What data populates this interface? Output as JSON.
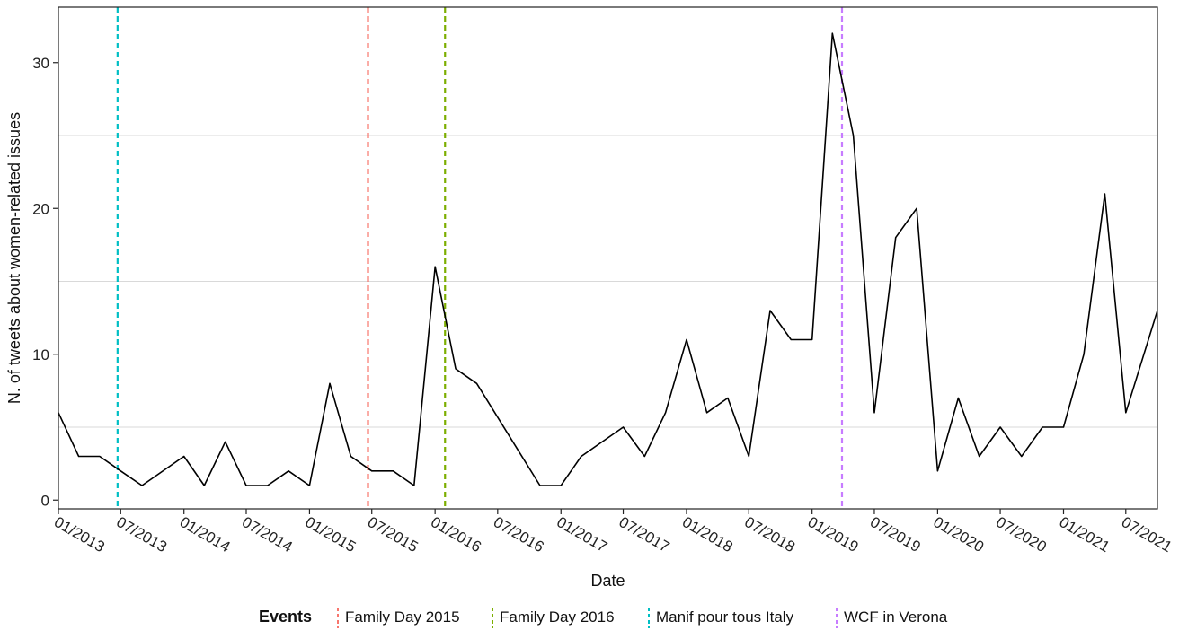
{
  "chart_data": {
    "type": "line",
    "title": "",
    "xlabel": "Date",
    "ylabel": "N. of tweets about women-related issues",
    "xlim": [
      "2013-01-01",
      "2021-10-01"
    ],
    "ylim": [
      -0.6,
      33.8
    ],
    "y_ticks": [
      0,
      10,
      20,
      30
    ],
    "y_minor_grid": [
      5,
      15,
      25
    ],
    "x_ticks": [
      {
        "date": "2013-01-01",
        "label": "01/2013"
      },
      {
        "date": "2013-07-01",
        "label": "07/2013"
      },
      {
        "date": "2014-01-01",
        "label": "01/2014"
      },
      {
        "date": "2014-07-01",
        "label": "07/2014"
      },
      {
        "date": "2015-01-01",
        "label": "01/2015"
      },
      {
        "date": "2015-07-01",
        "label": "07/2015"
      },
      {
        "date": "2016-01-01",
        "label": "01/2016"
      },
      {
        "date": "2016-07-01",
        "label": "07/2016"
      },
      {
        "date": "2017-01-01",
        "label": "01/2017"
      },
      {
        "date": "2017-07-01",
        "label": "07/2017"
      },
      {
        "date": "2018-01-01",
        "label": "01/2018"
      },
      {
        "date": "2018-07-01",
        "label": "07/2018"
      },
      {
        "date": "2019-01-01",
        "label": "01/2019"
      },
      {
        "date": "2019-07-01",
        "label": "07/2019"
      },
      {
        "date": "2020-01-01",
        "label": "01/2020"
      },
      {
        "date": "2020-07-01",
        "label": "07/2020"
      },
      {
        "date": "2021-01-01",
        "label": "01/2021"
      },
      {
        "date": "2021-07-01",
        "label": "07/2021"
      }
    ],
    "grid": "horizontal",
    "series": [
      {
        "color": "#000000",
        "points": [
          [
            "2013-01-01",
            6
          ],
          [
            "2013-03-01",
            3
          ],
          [
            "2013-05-01",
            3
          ],
          [
            "2013-07-01",
            2
          ],
          [
            "2013-09-01",
            1
          ],
          [
            "2014-01-01",
            3
          ],
          [
            "2014-03-01",
            1
          ],
          [
            "2014-05-01",
            4
          ],
          [
            "2014-07-01",
            1
          ],
          [
            "2014-09-01",
            1
          ],
          [
            "2014-11-01",
            2
          ],
          [
            "2015-01-01",
            1
          ],
          [
            "2015-03-01",
            8
          ],
          [
            "2015-05-01",
            3
          ],
          [
            "2015-07-01",
            2
          ],
          [
            "2015-09-01",
            2
          ],
          [
            "2015-11-01",
            1
          ],
          [
            "2016-01-01",
            16
          ],
          [
            "2016-03-01",
            9
          ],
          [
            "2016-05-01",
            8
          ],
          [
            "2016-11-01",
            1
          ],
          [
            "2017-01-01",
            1
          ],
          [
            "2017-03-01",
            3
          ],
          [
            "2017-07-01",
            5
          ],
          [
            "2017-09-01",
            3
          ],
          [
            "2017-11-01",
            6
          ],
          [
            "2018-01-01",
            11
          ],
          [
            "2018-03-01",
            6
          ],
          [
            "2018-05-01",
            7
          ],
          [
            "2018-07-01",
            3
          ],
          [
            "2018-09-01",
            13
          ],
          [
            "2018-11-01",
            11
          ],
          [
            "2019-01-01",
            11
          ],
          [
            "2019-03-01",
            32
          ],
          [
            "2019-05-01",
            25
          ],
          [
            "2019-07-01",
            6
          ],
          [
            "2019-09-01",
            18
          ],
          [
            "2019-11-01",
            20
          ],
          [
            "2020-01-01",
            2
          ],
          [
            "2020-03-01",
            7
          ],
          [
            "2020-05-01",
            3
          ],
          [
            "2020-07-01",
            5
          ],
          [
            "2020-09-01",
            3
          ],
          [
            "2020-11-01",
            5
          ],
          [
            "2021-01-01",
            5
          ],
          [
            "2021-03-01",
            10
          ],
          [
            "2021-05-01",
            21
          ],
          [
            "2021-07-01",
            6
          ],
          [
            "2021-10-01",
            13
          ]
        ]
      }
    ],
    "events": [
      {
        "name": "Family Day 2015",
        "date": "2015-06-20",
        "color": "#F8766D"
      },
      {
        "name": "Family Day 2016",
        "date": "2016-01-30",
        "color": "#7CAE00"
      },
      {
        "name": "Manif pour tous Italy",
        "date": "2013-06-22",
        "color": "#00BFC4"
      },
      {
        "name": "WCF in Verona",
        "date": "2019-03-29",
        "color": "#C77CFF"
      }
    ],
    "legend": {
      "title": "Events",
      "position": "bottom"
    }
  }
}
